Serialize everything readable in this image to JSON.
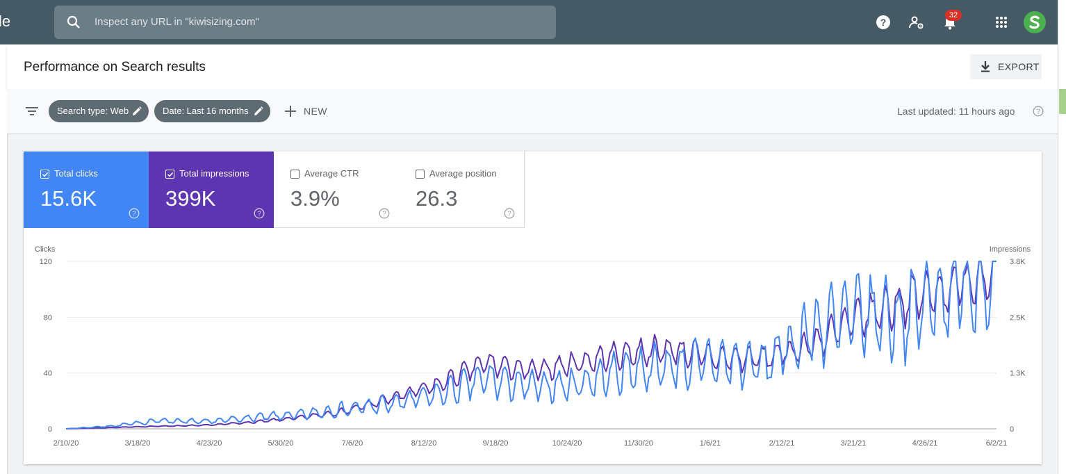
{
  "topbar": {
    "brand_fragment": "le",
    "search_placeholder": "Inspect any URL in \"kiwisizing.com\"",
    "notification_count": "32",
    "icons": [
      "help-icon",
      "manage-users-icon",
      "notifications-icon",
      "apps-grid-icon",
      "account-avatar"
    ]
  },
  "header": {
    "title": "Performance on Search results",
    "export_label": "EXPORT"
  },
  "filters": {
    "chips": [
      {
        "label": "Search type: Web"
      },
      {
        "label": "Date: Last 16 months"
      }
    ],
    "new_label": "NEW",
    "last_updated": "Last updated: 11 hours ago"
  },
  "metrics": [
    {
      "label": "Total clicks",
      "value": "15.6K",
      "checked": true,
      "color": "#4285f4"
    },
    {
      "label": "Total impressions",
      "value": "399K",
      "checked": true,
      "color": "#5e35b1"
    },
    {
      "label": "Average CTR",
      "value": "3.9%",
      "checked": false
    },
    {
      "label": "Average position",
      "value": "26.3",
      "checked": false
    }
  ],
  "chart_data": {
    "type": "line",
    "left_axis_label": "Clicks",
    "right_axis_label": "Impressions",
    "left_ticks": [
      "0",
      "40",
      "80",
      "120"
    ],
    "right_ticks": [
      "0",
      "1.3K",
      "2.5K",
      "3.8K"
    ],
    "left_range": [
      0,
      120
    ],
    "right_range": [
      0,
      3800
    ],
    "x_labels": [
      "2/10/20",
      "3/18/20",
      "4/23/20",
      "5/30/20",
      "7/6/20",
      "8/12/20",
      "9/18/20",
      "10/24/20",
      "11/30/20",
      "1/6/21",
      "2/12/21",
      "3/21/21",
      "4/26/21",
      "6/2/21"
    ],
    "grid": true,
    "series": [
      {
        "name": "Clicks",
        "axis": "left",
        "color": "#4285f4",
        "values": [
          0,
          2,
          6,
          5,
          8,
          10,
          14,
          18,
          25,
          36,
          30,
          32,
          42,
          45,
          48,
          46,
          70,
          82,
          80,
          100,
          108
        ]
      },
      {
        "name": "Impressions",
        "axis": "right",
        "color": "#5e35b1",
        "values": [
          0,
          30,
          60,
          80,
          150,
          250,
          400,
          700,
          1000,
          1500,
          1300,
          1500,
          1700,
          1800,
          1600,
          1600,
          1900,
          2500,
          2900,
          3200,
          3600
        ]
      }
    ]
  }
}
